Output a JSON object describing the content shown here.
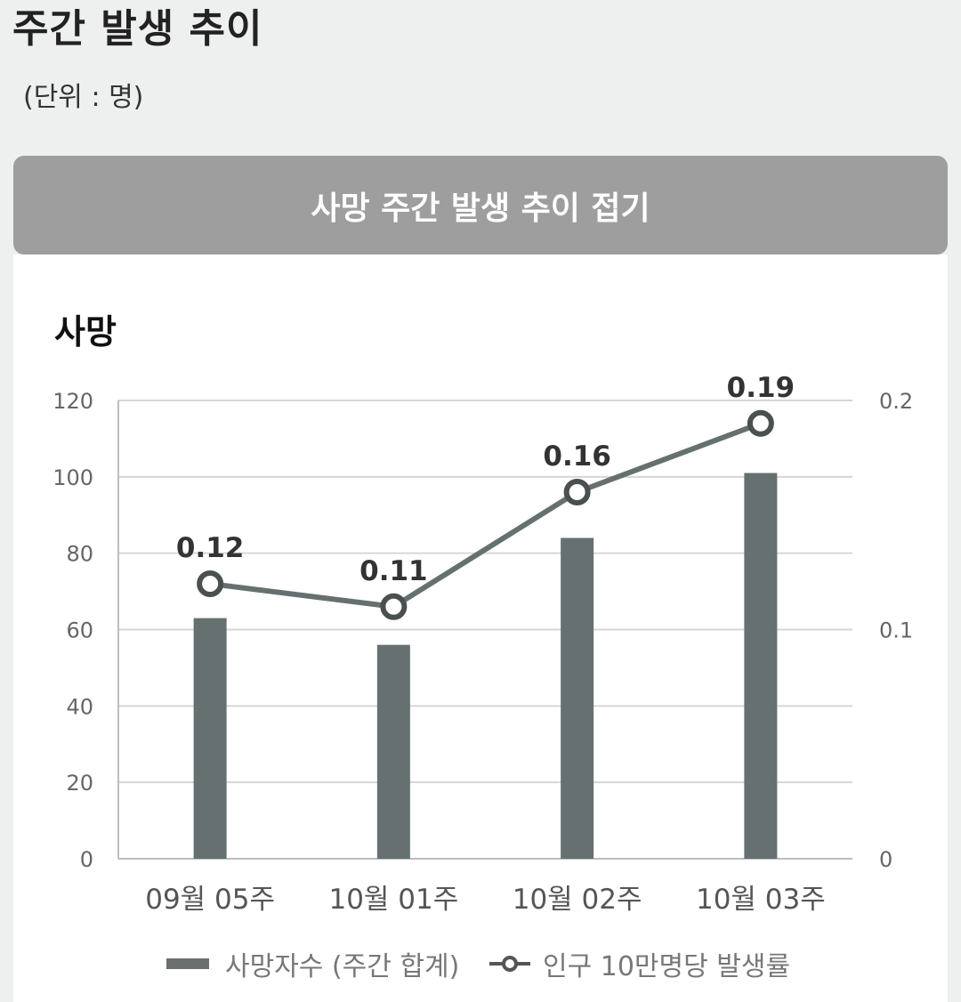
{
  "page": {
    "title": "주간 발생 추이",
    "unit": "(단위 : 명)",
    "toggle_label": "사망 주간 발생 추이 접기"
  },
  "colors": {
    "bar": "#667070",
    "line": "#667070",
    "grid": "#d6d6d6",
    "button_bg": "#9e9e9e",
    "page_bg": "#eef0ef"
  },
  "chart_data": {
    "type": "bar+line",
    "title": "사망",
    "categories": [
      "09월 05주",
      "10월 01주",
      "10월 02주",
      "10월 03주"
    ],
    "series": [
      {
        "name": "사망자수 (주간 합계)",
        "type": "bar",
        "axis": "left",
        "values": [
          63,
          56,
          84,
          101
        ]
      },
      {
        "name": "인구 10만명당 발생률",
        "type": "line",
        "axis": "right",
        "values": [
          0.12,
          0.11,
          0.16,
          0.19
        ],
        "data_labels": [
          "0.12",
          "0.11",
          "0.16",
          "0.19"
        ]
      }
    ],
    "y_left": {
      "ylim": [
        0,
        120
      ],
      "ticks": [
        0,
        20,
        40,
        60,
        80,
        100,
        120
      ]
    },
    "y_right": {
      "ylim": [
        0,
        0.2
      ],
      "ticks": [
        "0",
        "0.1",
        "0.2"
      ],
      "tick_values": [
        0,
        0.1,
        0.2
      ]
    },
    "grid": true,
    "legend_position": "bottom"
  }
}
